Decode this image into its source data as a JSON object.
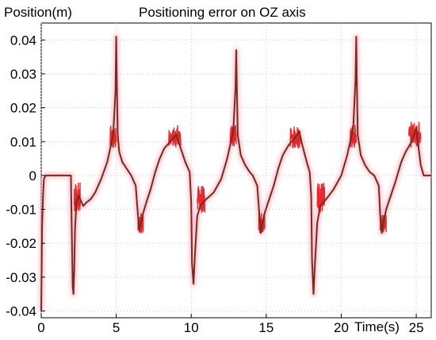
{
  "chart_data": {
    "type": "line",
    "title": "Positioning error on OZ axis",
    "ylabel": "Position(m)",
    "xlabel": "Time(s)",
    "xlim": [
      0,
      26
    ],
    "ylim": [
      -0.042,
      0.045
    ],
    "x_ticks": [
      0,
      5,
      10,
      15,
      20,
      25
    ],
    "y_ticks": [
      0.04,
      0.03,
      0.02,
      0.01,
      0,
      -0.01,
      -0.02,
      -0.03,
      -0.04
    ],
    "x_tick_labels": [
      "0",
      "5",
      "10",
      "15",
      "20",
      "25"
    ],
    "y_tick_labels": [
      "0.04",
      "0.03",
      "0.02",
      "0.01",
      "0",
      "-0.01",
      "-0.02",
      "-0.03",
      "-0.04"
    ],
    "grid": true,
    "colors": {
      "line": "#7a2a1c",
      "noise": "#e2141a",
      "halo": "#f7b6c6"
    },
    "series": [
      {
        "values": [
          [
            0.0,
            -0.04
          ],
          [
            0.03,
            -0.026
          ],
          [
            0.06,
            -0.015
          ],
          [
            0.12,
            -0.006
          ],
          [
            0.18,
            -0.001
          ],
          [
            0.3,
            0.0
          ],
          [
            1.5,
            0.0
          ],
          [
            1.98,
            0.0
          ],
          [
            2.0,
            -0.006
          ],
          [
            2.05,
            -0.02
          ],
          [
            2.1,
            -0.033
          ],
          [
            2.15,
            -0.035
          ],
          [
            2.2,
            -0.028
          ],
          [
            2.25,
            -0.016
          ],
          [
            2.35,
            -0.008
          ],
          [
            2.5,
            -0.006
          ],
          [
            2.8,
            -0.009
          ],
          [
            3.0,
            -0.008
          ],
          [
            3.3,
            -0.007
          ],
          [
            3.6,
            -0.005
          ],
          [
            4.0,
            -0.001
          ],
          [
            4.4,
            0.004
          ],
          [
            4.8,
            0.012
          ],
          [
            4.95,
            0.025
          ],
          [
            5.0,
            0.041
          ],
          [
            5.03,
            0.03
          ],
          [
            5.1,
            0.012
          ],
          [
            5.2,
            0.007
          ],
          [
            5.4,
            0.004
          ],
          [
            5.7,
            0.002
          ],
          [
            6.0,
            0.0
          ],
          [
            6.3,
            -0.003
          ],
          [
            6.45,
            -0.012
          ],
          [
            6.55,
            -0.016
          ],
          [
            6.65,
            -0.014
          ],
          [
            6.8,
            -0.011
          ],
          [
            7.0,
            -0.008
          ],
          [
            7.3,
            -0.004
          ],
          [
            7.6,
            0.001
          ],
          [
            7.9,
            0.005
          ],
          [
            8.2,
            0.008
          ],
          [
            8.6,
            0.01
          ],
          [
            9.0,
            0.012
          ],
          [
            9.3,
            0.008
          ],
          [
            9.6,
            0.004
          ],
          [
            9.9,
            0.001
          ],
          [
            10.0,
            -0.008
          ],
          [
            10.05,
            -0.026
          ],
          [
            10.15,
            -0.032
          ],
          [
            10.25,
            -0.023
          ],
          [
            10.4,
            -0.012
          ],
          [
            10.6,
            -0.009
          ],
          [
            11.0,
            -0.007
          ],
          [
            11.5,
            -0.005
          ],
          [
            12.0,
            -0.001
          ],
          [
            12.4,
            0.005
          ],
          [
            12.8,
            0.013
          ],
          [
            12.95,
            0.026
          ],
          [
            13.0,
            0.037
          ],
          [
            13.03,
            0.028
          ],
          [
            13.1,
            0.012
          ],
          [
            13.3,
            0.006
          ],
          [
            13.6,
            0.003
          ],
          [
            13.9,
            0.001
          ],
          [
            14.1,
            0.0
          ],
          [
            14.4,
            -0.003
          ],
          [
            14.55,
            -0.012
          ],
          [
            14.65,
            -0.017
          ],
          [
            14.75,
            -0.014
          ],
          [
            14.9,
            -0.011
          ],
          [
            15.2,
            -0.007
          ],
          [
            15.5,
            -0.003
          ],
          [
            15.8,
            0.002
          ],
          [
            16.1,
            0.006
          ],
          [
            16.5,
            0.009
          ],
          [
            16.9,
            0.011
          ],
          [
            17.2,
            0.013
          ],
          [
            17.4,
            0.009
          ],
          [
            17.7,
            0.004
          ],
          [
            17.9,
            0.001
          ],
          [
            18.0,
            -0.006
          ],
          [
            18.05,
            -0.025
          ],
          [
            18.15,
            -0.035
          ],
          [
            18.25,
            -0.026
          ],
          [
            18.4,
            -0.014
          ],
          [
            18.6,
            -0.009
          ],
          [
            19.0,
            -0.007
          ],
          [
            19.5,
            -0.004
          ],
          [
            20.0,
            0.0
          ],
          [
            20.4,
            0.006
          ],
          [
            20.8,
            0.014
          ],
          [
            20.95,
            0.028
          ],
          [
            21.0,
            0.041
          ],
          [
            21.03,
            0.03
          ],
          [
            21.1,
            0.012
          ],
          [
            21.3,
            0.006
          ],
          [
            21.6,
            0.003
          ],
          [
            21.9,
            0.001
          ],
          [
            22.2,
            0.0
          ],
          [
            22.5,
            -0.003
          ],
          [
            22.6,
            -0.012
          ],
          [
            22.7,
            -0.017
          ],
          [
            22.8,
            -0.014
          ],
          [
            23.0,
            -0.01
          ],
          [
            23.3,
            -0.006
          ],
          [
            23.6,
            -0.002
          ],
          [
            24.0,
            0.004
          ],
          [
            24.3,
            0.007
          ],
          [
            24.7,
            0.01
          ],
          [
            25.0,
            0.014
          ],
          [
            25.1,
            0.01
          ],
          [
            25.3,
            0.003
          ],
          [
            25.5,
            0.0
          ],
          [
            26.0,
            0.0
          ]
        ]
      }
    ],
    "noise_bursts": [
      {
        "x": [
          2.2,
          2.6
        ],
        "y": [
          -0.011,
          -0.002
        ]
      },
      {
        "x": [
          8.5,
          9.3
        ],
        "y": [
          0.008,
          0.015
        ]
      },
      {
        "x": [
          10.4,
          10.9
        ],
        "y": [
          -0.011,
          -0.003
        ]
      },
      {
        "x": [
          16.6,
          17.3
        ],
        "y": [
          0.008,
          0.015
        ]
      },
      {
        "x": [
          18.4,
          18.9
        ],
        "y": [
          -0.011,
          -0.002
        ]
      },
      {
        "x": [
          24.5,
          25.3
        ],
        "y": [
          0.008,
          0.016
        ]
      },
      {
        "x": [
          4.6,
          5.0
        ],
        "y": [
          0.008,
          0.015
        ]
      },
      {
        "x": [
          12.6,
          13.0
        ],
        "y": [
          0.008,
          0.015
        ]
      },
      {
        "x": [
          20.6,
          21.0
        ],
        "y": [
          0.008,
          0.015
        ]
      },
      {
        "x": [
          6.45,
          6.8
        ],
        "y": [
          -0.017,
          -0.011
        ]
      },
      {
        "x": [
          14.5,
          14.9
        ],
        "y": [
          -0.017,
          -0.011
        ]
      },
      {
        "x": [
          22.6,
          23.0
        ],
        "y": [
          -0.017,
          -0.011
        ]
      }
    ]
  }
}
